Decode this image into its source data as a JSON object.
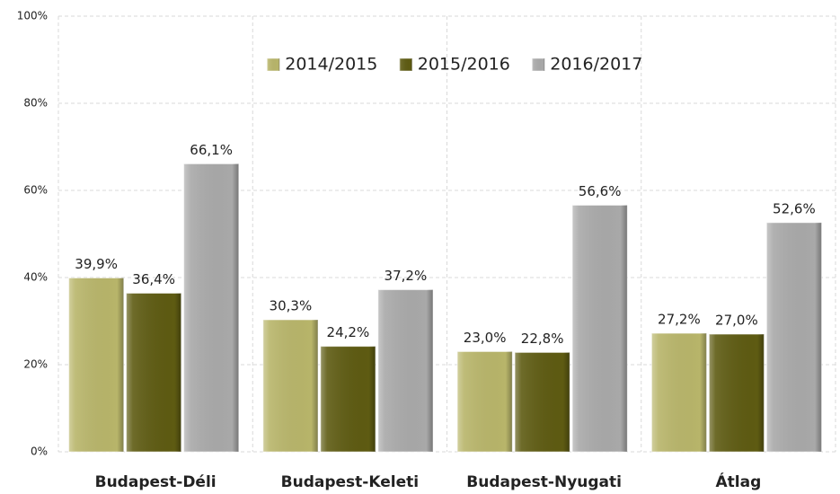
{
  "chart_data": {
    "type": "bar",
    "categories": [
      "Budapest-Déli",
      "Budapest-Keleti",
      "Budapest-Nyugati",
      "Átlag"
    ],
    "series": [
      {
        "name": "2014/2015",
        "color": "#b8b56a",
        "values": [
          39.9,
          30.3,
          23.0,
          27.2
        ],
        "value_labels": [
          "39,9%",
          "30,3%",
          "23,0%",
          "27,2%"
        ]
      },
      {
        "name": "2015/2016",
        "color": "#5e5b12",
        "values": [
          36.4,
          24.2,
          22.8,
          27.0
        ],
        "value_labels": [
          "36,4%",
          "24,2%",
          "22,8%",
          "27,0%"
        ]
      },
      {
        "name": "2016/2017",
        "color": "#a9a9a9",
        "values": [
          66.1,
          37.2,
          56.6,
          52.6
        ],
        "value_labels": [
          "66,1%",
          "37,2%",
          "56,6%",
          "52,6%"
        ]
      }
    ],
    "ylim": [
      0,
      100
    ],
    "yticks": [
      {
        "value": 0,
        "label": "0%"
      },
      {
        "value": 20,
        "label": "20%"
      },
      {
        "value": 40,
        "label": "40%"
      },
      {
        "value": 60,
        "label": "60%"
      },
      {
        "value": 80,
        "label": "80%"
      },
      {
        "value": 100,
        "label": "100%"
      }
    ],
    "grid": true,
    "legend": "top"
  }
}
